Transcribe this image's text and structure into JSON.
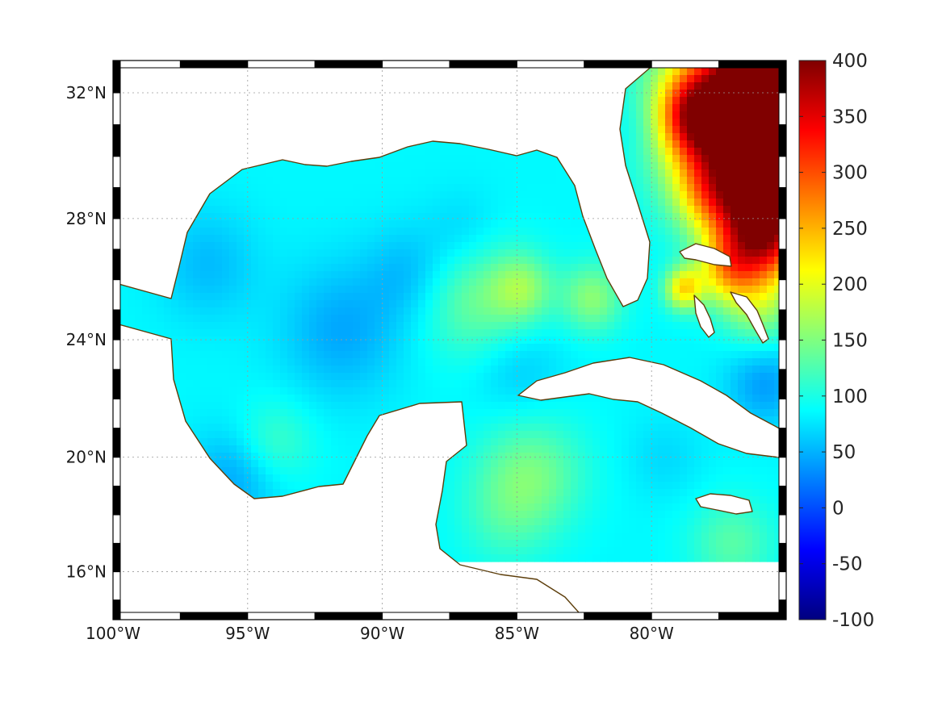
{
  "map": {
    "projection": "mercator",
    "lon_range": [
      -100,
      -75
    ],
    "lat_range": [
      14.3,
      33
    ],
    "lon_ticks": [
      {
        "value": -100,
        "label": "100°W"
      },
      {
        "value": -95,
        "label": "95°W"
      },
      {
        "value": -90,
        "label": "90°W"
      },
      {
        "value": -85,
        "label": "85°W"
      },
      {
        "value": -80,
        "label": "80°W"
      }
    ],
    "lat_ticks": [
      {
        "value": 16,
        "label": "16°N"
      },
      {
        "value": 20,
        "label": "20°N"
      },
      {
        "value": 24,
        "label": "24°N"
      },
      {
        "value": 28,
        "label": "28°N"
      },
      {
        "value": 32,
        "label": "32°N"
      }
    ],
    "grid": true,
    "coastline_color": "#5c3d0a",
    "land_color": "#ffffff"
  },
  "colorbar": {
    "colormap": "jet",
    "range": [
      -100,
      400
    ],
    "ticks": [
      {
        "value": 400,
        "label": "400"
      },
      {
        "value": 350,
        "label": "350"
      },
      {
        "value": 300,
        "label": "300"
      },
      {
        "value": 250,
        "label": "250"
      },
      {
        "value": 200,
        "label": "200"
      },
      {
        "value": 150,
        "label": "150"
      },
      {
        "value": 100,
        "label": "100"
      },
      {
        "value": 50,
        "label": "50"
      },
      {
        "value": 0,
        "label": "0"
      },
      {
        "value": -50,
        "label": "-50"
      },
      {
        "value": -100,
        "label": "-100"
      }
    ]
  },
  "field": {
    "background_value": 85,
    "features": [
      {
        "lon": -91.5,
        "lat": 24.3,
        "value": 45,
        "spread": 1.6
      },
      {
        "lon": -96.5,
        "lat": 26.5,
        "value": 55,
        "spread": 1.3
      },
      {
        "lon": -95.5,
        "lat": 19.3,
        "value": 45,
        "spread": 1.2
      },
      {
        "lon": -89.0,
        "lat": 26.2,
        "value": 55,
        "spread": 1.1
      },
      {
        "lon": -85.0,
        "lat": 23.0,
        "value": 60,
        "spread": 1.2
      },
      {
        "lon": -87.0,
        "lat": 27.5,
        "value": 65,
        "spread": 1.0
      },
      {
        "lon": -86.5,
        "lat": 25.3,
        "value": 140,
        "spread": 1.4
      },
      {
        "lon": -84.8,
        "lat": 25.7,
        "value": 150,
        "spread": 0.8
      },
      {
        "lon": -84.5,
        "lat": 19.4,
        "value": 145,
        "spread": 1.4
      },
      {
        "lon": -85.5,
        "lat": 17.8,
        "value": 110,
        "spread": 1.2
      },
      {
        "lon": -82.2,
        "lat": 25.4,
        "value": 155,
        "spread": 0.8
      },
      {
        "lon": -94.0,
        "lat": 20.5,
        "value": 120,
        "spread": 1.0
      },
      {
        "lon": -77.0,
        "lat": 31.4,
        "value": 360,
        "spread": 1.8
      },
      {
        "lon": -75.5,
        "lat": 32.5,
        "value": 400,
        "spread": 1.2
      },
      {
        "lon": -78.4,
        "lat": 31.3,
        "value": 230,
        "spread": 0.9
      },
      {
        "lon": -76.0,
        "lat": 29.0,
        "value": 320,
        "spread": 1.3
      },
      {
        "lon": -75.8,
        "lat": 27.3,
        "value": 290,
        "spread": 1.1
      },
      {
        "lon": -78.0,
        "lat": 28.8,
        "value": 160,
        "spread": 0.9
      },
      {
        "lon": -78.8,
        "lat": 25.7,
        "value": 220,
        "spread": 0.5
      },
      {
        "lon": -77.2,
        "lat": 26.3,
        "value": 200,
        "spread": 0.8
      },
      {
        "lon": -76.0,
        "lat": 25.0,
        "value": 150,
        "spread": 0.9
      },
      {
        "lon": -75.8,
        "lat": 22.5,
        "value": 40,
        "spread": 1.0
      },
      {
        "lon": -77.0,
        "lat": 17.0,
        "value": 130,
        "spread": 1.1
      },
      {
        "lon": -79.5,
        "lat": 20.0,
        "value": 70,
        "spread": 1.0
      },
      {
        "lon": -80.5,
        "lat": 31.0,
        "value": 70,
        "spread": 0.8
      }
    ]
  }
}
